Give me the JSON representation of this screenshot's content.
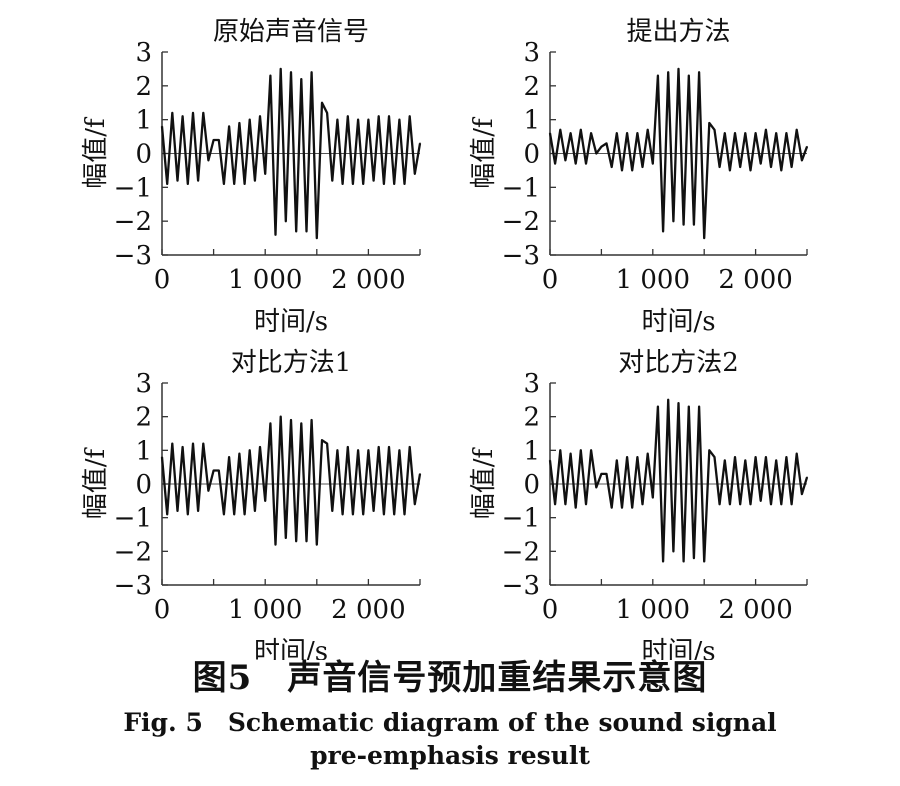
{
  "chart_data": [
    {
      "type": "line",
      "title": "原始声音信号",
      "xlabel": "时间/s",
      "ylabel": "幅值/f",
      "xlim": [
        0,
        2500
      ],
      "ylim": [
        -3,
        3
      ],
      "xticks": [
        0,
        1000,
        2000
      ],
      "xtick_labels": [
        "0",
        "1 000",
        "2 000"
      ],
      "yticks": [
        3,
        2,
        1,
        0,
        -1,
        -2,
        -3
      ],
      "ytick_labels": [
        "3",
        "2",
        "1",
        "0",
        "−1",
        "−2",
        "−3"
      ],
      "zero_line": true,
      "grid": false,
      "series": [
        {
          "x": [
            0,
            50,
            100,
            150,
            200,
            250,
            300,
            350,
            400,
            450,
            500,
            550,
            600,
            650,
            700,
            750,
            800,
            850,
            900,
            950,
            1000,
            1050,
            1100,
            1150,
            1200,
            1250,
            1300,
            1350,
            1400,
            1450,
            1500,
            1550,
            1600,
            1650,
            1700,
            1750,
            1800,
            1850,
            1900,
            1950,
            2000,
            2050,
            2100,
            2150,
            2200,
            2250,
            2300,
            2350,
            2400,
            2450,
            2500
          ],
          "y": [
            0.8,
            -0.9,
            1.2,
            -0.8,
            1.1,
            -0.9,
            1.2,
            -0.8,
            1.2,
            -0.2,
            0.4,
            0.4,
            -0.9,
            0.8,
            -0.9,
            0.9,
            -0.9,
            1.0,
            -0.8,
            1.1,
            -0.6,
            2.3,
            -2.4,
            2.5,
            -2.0,
            2.4,
            -2.3,
            2.2,
            -2.3,
            2.4,
            -2.5,
            1.5,
            1.2,
            -0.8,
            1.0,
            -0.9,
            1.1,
            -0.9,
            1.0,
            -0.9,
            1.0,
            -0.8,
            1.1,
            -0.9,
            1.1,
            -0.9,
            1.0,
            -0.9,
            1.1,
            -0.6,
            0.3
          ]
        }
      ]
    },
    {
      "type": "line",
      "title": "提出方法",
      "xlabel": "时间/s",
      "ylabel": "幅值/f",
      "xlim": [
        0,
        2500
      ],
      "ylim": [
        -3,
        3
      ],
      "xticks": [
        0,
        1000,
        2000
      ],
      "xtick_labels": [
        "0",
        "1 000",
        "2 000"
      ],
      "yticks": [
        3,
        2,
        1,
        0,
        -1,
        -2,
        -3
      ],
      "ytick_labels": [
        "3",
        "2",
        "1",
        "0",
        "−1",
        "−2",
        "−3"
      ],
      "zero_line": true,
      "grid": false,
      "series": [
        {
          "x": [
            0,
            50,
            100,
            150,
            200,
            250,
            300,
            350,
            400,
            450,
            500,
            550,
            600,
            650,
            700,
            750,
            800,
            850,
            900,
            950,
            1000,
            1050,
            1100,
            1150,
            1200,
            1250,
            1300,
            1350,
            1400,
            1450,
            1500,
            1550,
            1600,
            1650,
            1700,
            1750,
            1800,
            1850,
            1900,
            1950,
            2000,
            2050,
            2100,
            2150,
            2200,
            2250,
            2300,
            2350,
            2400,
            2450,
            2500
          ],
          "y": [
            0.6,
            -0.3,
            0.7,
            -0.2,
            0.6,
            -0.3,
            0.7,
            -0.3,
            0.6,
            0.0,
            0.2,
            0.3,
            -0.4,
            0.6,
            -0.5,
            0.6,
            -0.5,
            0.6,
            -0.4,
            0.7,
            -0.3,
            2.3,
            -2.3,
            2.4,
            -2.0,
            2.5,
            -2.1,
            2.3,
            -2.1,
            2.4,
            -2.5,
            0.9,
            0.7,
            -0.4,
            0.6,
            -0.5,
            0.6,
            -0.4,
            0.6,
            -0.5,
            0.6,
            -0.3,
            0.7,
            -0.4,
            0.6,
            -0.5,
            0.6,
            -0.4,
            0.7,
            -0.2,
            0.2
          ]
        }
      ]
    },
    {
      "type": "line",
      "title": "对比方法1",
      "xlabel": "时间/s",
      "ylabel": "幅值/f",
      "xlim": [
        0,
        2500
      ],
      "ylim": [
        -3,
        3
      ],
      "xticks": [
        0,
        1000,
        2000
      ],
      "xtick_labels": [
        "0",
        "1 000",
        "2 000"
      ],
      "yticks": [
        3,
        2,
        1,
        0,
        -1,
        -2,
        -3
      ],
      "ytick_labels": [
        "3",
        "2",
        "1",
        "0",
        "−1",
        "−2",
        "−3"
      ],
      "zero_line": true,
      "grid": false,
      "series": [
        {
          "x": [
            0,
            50,
            100,
            150,
            200,
            250,
            300,
            350,
            400,
            450,
            500,
            550,
            600,
            650,
            700,
            750,
            800,
            850,
            900,
            950,
            1000,
            1050,
            1100,
            1150,
            1200,
            1250,
            1300,
            1350,
            1400,
            1450,
            1500,
            1550,
            1600,
            1650,
            1700,
            1750,
            1800,
            1850,
            1900,
            1950,
            2000,
            2050,
            2100,
            2150,
            2200,
            2250,
            2300,
            2350,
            2400,
            2450,
            2500
          ],
          "y": [
            0.8,
            -0.9,
            1.2,
            -0.8,
            1.1,
            -0.9,
            1.2,
            -0.8,
            1.2,
            -0.2,
            0.4,
            0.4,
            -0.9,
            0.8,
            -0.9,
            0.9,
            -0.9,
            1.0,
            -0.8,
            1.1,
            -0.5,
            1.8,
            -1.8,
            2.0,
            -1.6,
            1.9,
            -1.7,
            1.8,
            -1.7,
            1.9,
            -1.8,
            1.3,
            1.2,
            -0.8,
            1.0,
            -0.9,
            1.1,
            -0.9,
            1.0,
            -0.9,
            1.0,
            -0.8,
            1.1,
            -0.9,
            1.1,
            -0.9,
            1.0,
            -0.9,
            1.1,
            -0.6,
            0.3
          ]
        }
      ]
    },
    {
      "type": "line",
      "title": "对比方法2",
      "xlabel": "时间/s",
      "ylabel": "幅值/f",
      "xlim": [
        0,
        2500
      ],
      "ylim": [
        -3,
        3
      ],
      "xticks": [
        0,
        1000,
        2000
      ],
      "xtick_labels": [
        "0",
        "1 000",
        "2 000"
      ],
      "yticks": [
        3,
        2,
        1,
        0,
        -1,
        -2,
        -3
      ],
      "ytick_labels": [
        "3",
        "2",
        "1",
        "0",
        "−1",
        "−2",
        "−3"
      ],
      "zero_line": true,
      "grid": false,
      "series": [
        {
          "x": [
            0,
            50,
            100,
            150,
            200,
            250,
            300,
            350,
            400,
            450,
            500,
            550,
            600,
            650,
            700,
            750,
            800,
            850,
            900,
            950,
            1000,
            1050,
            1100,
            1150,
            1200,
            1250,
            1300,
            1350,
            1400,
            1450,
            1500,
            1550,
            1600,
            1650,
            1700,
            1750,
            1800,
            1850,
            1900,
            1950,
            2000,
            2050,
            2100,
            2150,
            2200,
            2250,
            2300,
            2350,
            2400,
            2450,
            2500
          ],
          "y": [
            0.7,
            -0.6,
            1.0,
            -0.6,
            0.9,
            -0.7,
            1.0,
            -0.6,
            1.0,
            -0.1,
            0.3,
            0.3,
            -0.7,
            0.7,
            -0.7,
            0.8,
            -0.7,
            0.8,
            -0.6,
            0.9,
            -0.4,
            2.3,
            -2.3,
            2.5,
            -2.0,
            2.4,
            -2.3,
            2.3,
            -2.2,
            2.3,
            -2.3,
            1.0,
            0.8,
            -0.6,
            0.7,
            -0.6,
            0.8,
            -0.6,
            0.7,
            -0.6,
            0.8,
            -0.5,
            0.8,
            -0.6,
            0.7,
            -0.6,
            0.8,
            -0.6,
            0.9,
            -0.3,
            0.2
          ]
        }
      ]
    }
  ],
  "caption": {
    "cn": "图5　声音信号预加重结果示意图",
    "en_line1": "Fig. 5　Schematic diagram of the sound signal",
    "en_line2": "pre-emphasis result"
  }
}
